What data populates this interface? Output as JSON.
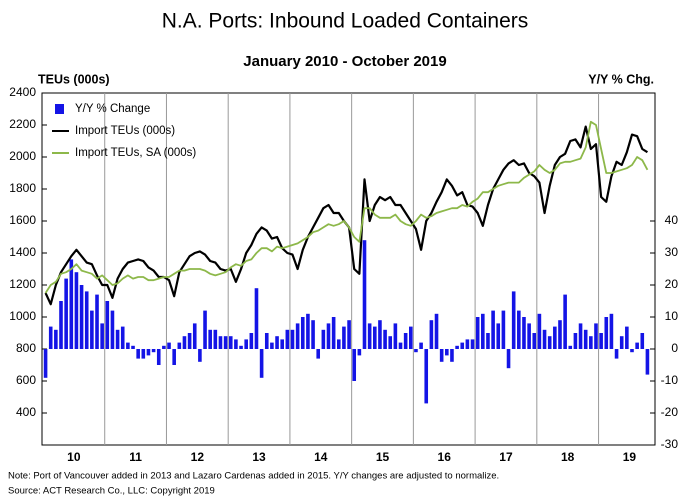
{
  "chart_data": {
    "type": "bar-line",
    "title": "N.A. Ports: Inbound Loaded Containers",
    "subtitle": "January 2010 - October 2019",
    "y_label": "TEUs (000s)",
    "y2_label": "Y/Y % Chg.",
    "note": "Note: Port of Vancouver added in 2013 and Lazaro Cardenas added in 2015. Y/Y changes are adjusted to normalize.",
    "source": "Source: ACT Research Co., LLC: Copyright 2019",
    "legend": "top-left",
    "categories": [
      null,
      null,
      null,
      null,
      null,
      "10",
      null,
      null,
      null,
      null,
      null,
      null,
      null,
      null,
      null,
      null,
      null,
      "11",
      null,
      null,
      null,
      null,
      null,
      null,
      null,
      null,
      null,
      null,
      null,
      "12",
      null,
      null,
      null,
      null,
      null,
      null,
      null,
      null,
      null,
      null,
      null,
      "13",
      null,
      null,
      null,
      null,
      null,
      null,
      null,
      null,
      null,
      null,
      null,
      "14",
      null,
      null,
      null,
      null,
      null,
      null,
      null,
      null,
      null,
      null,
      null,
      "15",
      null,
      null,
      null,
      null,
      null,
      null,
      null,
      null,
      null,
      null,
      null,
      "16",
      null,
      null,
      null,
      null,
      null,
      null,
      null,
      null,
      null,
      null,
      null,
      "17",
      null,
      null,
      null,
      null,
      null,
      null,
      null,
      null,
      null,
      null,
      null,
      "18",
      null,
      null,
      null,
      null,
      null,
      null,
      null,
      null,
      null,
      null,
      null,
      "19",
      null,
      null,
      null,
      null
    ],
    "ylim": [
      200,
      2400
    ],
    "yticks": [
      400,
      600,
      800,
      1000,
      1200,
      1400,
      1600,
      1800,
      2000,
      2200,
      2400
    ],
    "y2lim": [
      -30,
      80
    ],
    "y2ticks": [
      -30,
      -20,
      -10,
      0,
      10,
      20,
      30,
      40
    ],
    "series": [
      {
        "name": "Y/Y % Change",
        "type": "bar",
        "axis": "y2",
        "color": "#1414e6",
        "values": [
          -9,
          7,
          6,
          15,
          22,
          28,
          24,
          20,
          18,
          12,
          17,
          8,
          15,
          12,
          6,
          7,
          2,
          1,
          -3,
          -3,
          -2,
          -1,
          -5,
          1,
          2,
          -5,
          2,
          4,
          5,
          8,
          -4,
          12,
          6,
          6,
          4,
          4,
          4,
          3,
          1,
          3,
          5,
          19,
          -9,
          5,
          2,
          4,
          3,
          6,
          6,
          8,
          10,
          11,
          9,
          -3,
          6,
          8,
          10,
          3,
          7,
          9,
          -10,
          -2,
          34,
          8,
          7,
          9,
          6,
          4,
          8,
          2,
          5,
          7,
          -1,
          2,
          -17,
          9,
          11,
          -4,
          -2,
          -4,
          1,
          2,
          3,
          3,
          10,
          11,
          5,
          12,
          8,
          12,
          -6,
          18,
          12,
          10,
          8,
          5,
          11,
          6,
          4,
          7,
          9,
          17,
          1,
          5,
          8,
          6,
          4,
          8,
          5,
          10,
          11,
          -3,
          4,
          7,
          -1,
          2,
          5,
          -8
        ]
      },
      {
        "name": "Import TEUs (000s)",
        "type": "line",
        "color": "#000000",
        "values": [
          1150,
          1080,
          1200,
          1280,
          1330,
          1380,
          1420,
          1380,
          1340,
          1330,
          1260,
          1200,
          1200,
          1120,
          1240,
          1300,
          1340,
          1350,
          1360,
          1350,
          1310,
          1290,
          1250,
          1250,
          1230,
          1130,
          1280,
          1330,
          1380,
          1400,
          1410,
          1390,
          1350,
          1340,
          1300,
          1290,
          1300,
          1220,
          1300,
          1400,
          1450,
          1520,
          1560,
          1540,
          1490,
          1500,
          1430,
          1400,
          1390,
          1300,
          1420,
          1500,
          1560,
          1620,
          1680,
          1700,
          1650,
          1650,
          1600,
          1560,
          1300,
          1270,
          1860,
          1600,
          1700,
          1750,
          1730,
          1750,
          1700,
          1700,
          1650,
          1600,
          1550,
          1420,
          1600,
          1650,
          1720,
          1780,
          1860,
          1820,
          1760,
          1780,
          1700,
          1690,
          1650,
          1570,
          1700,
          1800,
          1860,
          1920,
          1960,
          1980,
          1950,
          1960,
          1900,
          1880,
          1840,
          1650,
          1820,
          1950,
          2000,
          2020,
          2100,
          2110,
          2060,
          2190,
          2050,
          2080,
          1750,
          1720,
          1880,
          1970,
          1950,
          2030,
          2140,
          2130,
          2050,
          2030
        ]
      },
      {
        "name": "Import TEUs, SA (000s)",
        "type": "line",
        "color": "#8db84a",
        "values": [
          1150,
          1200,
          1220,
          1270,
          1280,
          1300,
          1330,
          1290,
          1280,
          1270,
          1240,
          1260,
          1230,
          1200,
          1210,
          1240,
          1260,
          1240,
          1250,
          1250,
          1230,
          1230,
          1240,
          1250,
          1250,
          1270,
          1290,
          1290,
          1300,
          1300,
          1300,
          1290,
          1270,
          1260,
          1270,
          1280,
          1310,
          1330,
          1320,
          1350,
          1360,
          1400,
          1430,
          1430,
          1410,
          1440,
          1430,
          1440,
          1450,
          1460,
          1480,
          1500,
          1530,
          1540,
          1560,
          1580,
          1570,
          1580,
          1600,
          1560,
          1500,
          1470,
          1680,
          1680,
          1640,
          1620,
          1620,
          1620,
          1640,
          1600,
          1580,
          1570,
          1600,
          1640,
          1620,
          1630,
          1650,
          1660,
          1670,
          1680,
          1680,
          1700,
          1690,
          1720,
          1740,
          1780,
          1780,
          1800,
          1820,
          1830,
          1840,
          1840,
          1840,
          1870,
          1890,
          1910,
          1950,
          1920,
          1900,
          1920,
          1960,
          1970,
          1970,
          1980,
          1990,
          2060,
          2220,
          2200,
          2050,
          1900,
          1900,
          1910,
          1920,
          1930,
          1950,
          2000,
          1980,
          1920
        ]
      }
    ]
  }
}
